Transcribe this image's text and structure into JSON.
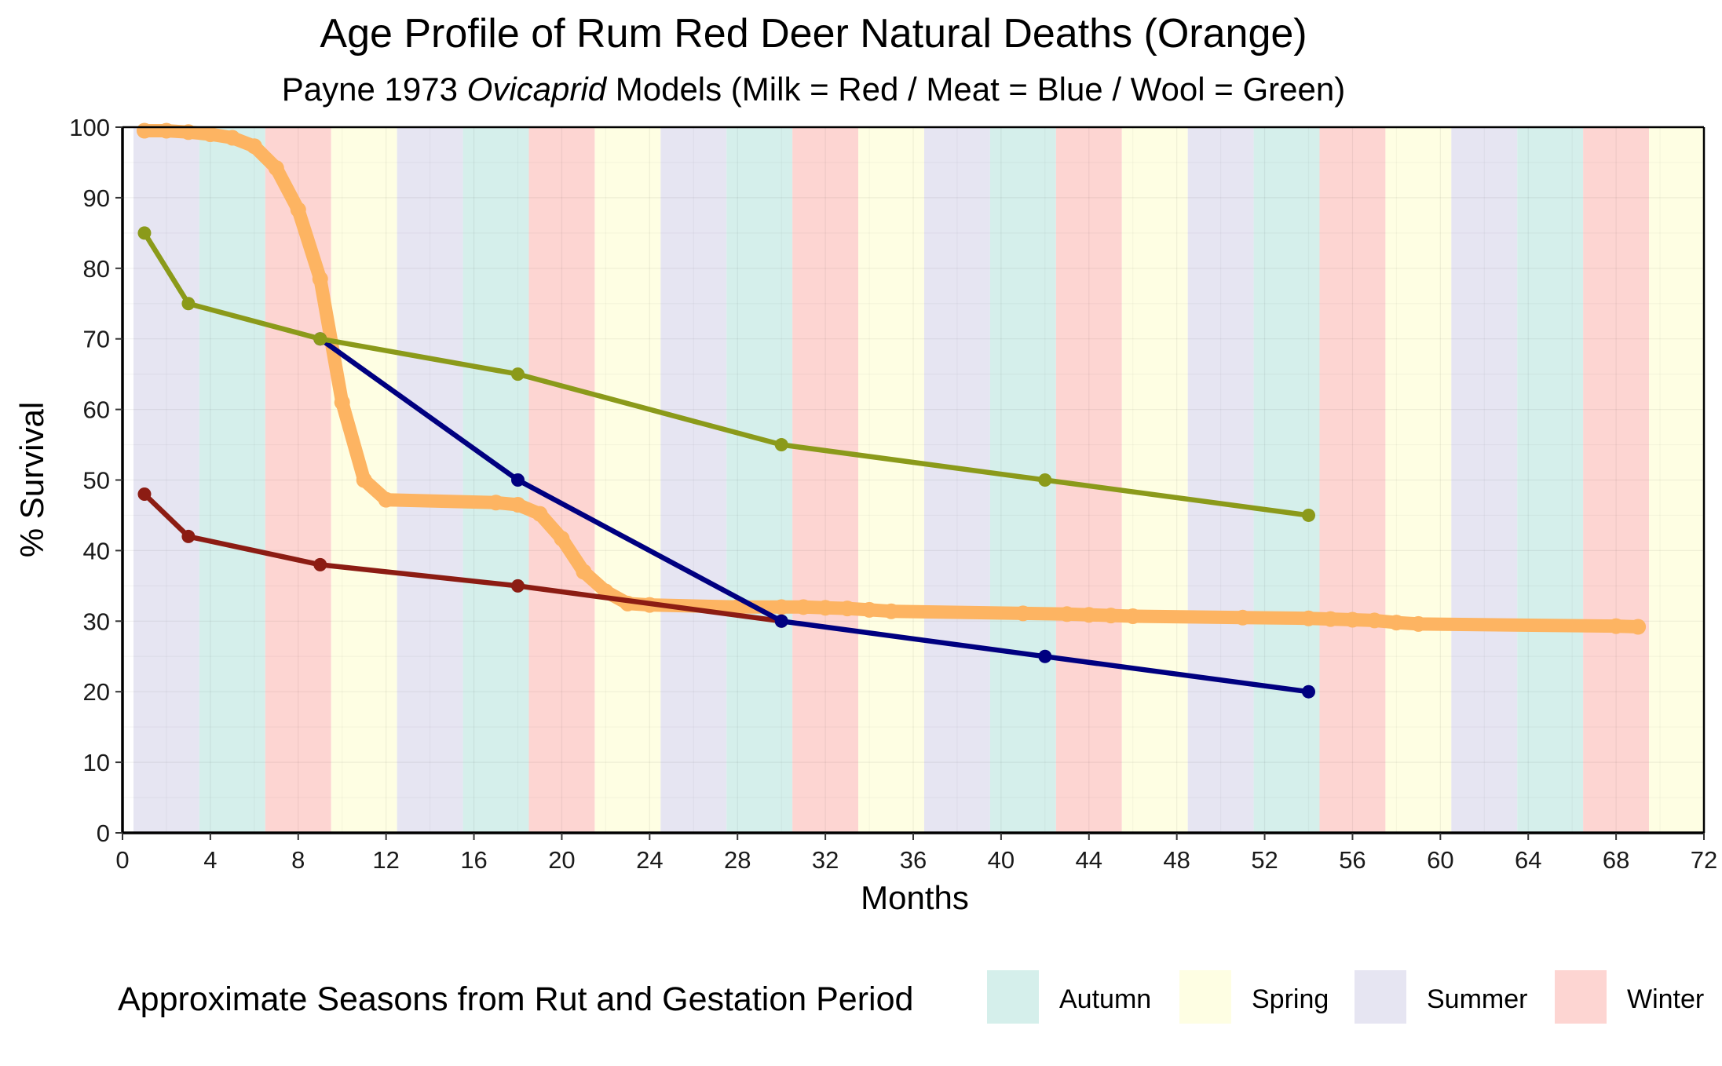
{
  "chart_data": {
    "type": "line",
    "title": "Age Profile of Rum Red Deer Natural Deaths (Orange)",
    "subtitle_parts": [
      {
        "text": "Payne 1973 ",
        "italic": false
      },
      {
        "text": "Ovicaprid",
        "italic": true
      },
      {
        "text": " Models (Milk = Red / Meat = Blue / Wool = Green)",
        "italic": false
      }
    ],
    "xlabel": "Months",
    "ylabel": "% Survival",
    "xlim": [
      0,
      72
    ],
    "ylim": [
      0,
      100
    ],
    "x_ticks": [
      0,
      4,
      8,
      12,
      16,
      20,
      24,
      28,
      32,
      36,
      40,
      44,
      48,
      52,
      56,
      60,
      64,
      68,
      72
    ],
    "y_ticks": [
      0,
      10,
      20,
      30,
      40,
      50,
      60,
      70,
      80,
      90,
      100
    ],
    "grid": true,
    "seasons": {
      "legend_title": "Approximate Seasons from Rut and Gestation Period",
      "legend_position": "bottom",
      "types": [
        {
          "key": "autumn",
          "label": "Autumn",
          "color": "#d5efeb"
        },
        {
          "key": "spring",
          "label": "Spring",
          "color": "#fefee3"
        },
        {
          "key": "summer",
          "label": "Summer",
          "color": "#e6e5f2"
        },
        {
          "key": "winter",
          "label": "Winter",
          "color": "#fdd5d2"
        }
      ],
      "bands": [
        {
          "from": 0.5,
          "to": 3.5,
          "season": "summer"
        },
        {
          "from": 3.5,
          "to": 6.5,
          "season": "autumn"
        },
        {
          "from": 6.5,
          "to": 9.5,
          "season": "winter"
        },
        {
          "from": 9.5,
          "to": 12.5,
          "season": "spring"
        },
        {
          "from": 12.5,
          "to": 15.5,
          "season": "summer"
        },
        {
          "from": 15.5,
          "to": 18.5,
          "season": "autumn"
        },
        {
          "from": 18.5,
          "to": 21.5,
          "season": "winter"
        },
        {
          "from": 21.5,
          "to": 24.5,
          "season": "spring"
        },
        {
          "from": 24.5,
          "to": 27.5,
          "season": "summer"
        },
        {
          "from": 27.5,
          "to": 30.5,
          "season": "autumn"
        },
        {
          "from": 30.5,
          "to": 33.5,
          "season": "winter"
        },
        {
          "from": 33.5,
          "to": 36.5,
          "season": "spring"
        },
        {
          "from": 36.5,
          "to": 39.5,
          "season": "summer"
        },
        {
          "from": 39.5,
          "to": 42.5,
          "season": "autumn"
        },
        {
          "from": 42.5,
          "to": 45.5,
          "season": "winter"
        },
        {
          "from": 45.5,
          "to": 48.5,
          "season": "spring"
        },
        {
          "from": 48.5,
          "to": 51.5,
          "season": "summer"
        },
        {
          "from": 51.5,
          "to": 54.5,
          "season": "autumn"
        },
        {
          "from": 54.5,
          "to": 57.5,
          "season": "winter"
        },
        {
          "from": 57.5,
          "to": 60.5,
          "season": "spring"
        },
        {
          "from": 60.5,
          "to": 63.5,
          "season": "summer"
        },
        {
          "from": 63.5,
          "to": 66.5,
          "season": "autumn"
        },
        {
          "from": 66.5,
          "to": 69.5,
          "season": "winter"
        },
        {
          "from": 69.5,
          "to": 72,
          "season": "spring"
        }
      ]
    },
    "series": [
      {
        "color": "#fdb462",
        "weight": "thick",
        "points": [
          [
            1,
            99.5
          ],
          [
            2,
            99.5
          ],
          [
            3,
            99.3
          ],
          [
            4,
            99
          ],
          [
            5,
            98.5
          ],
          [
            6,
            97.3
          ],
          [
            7,
            94.2
          ],
          [
            8,
            88.3
          ],
          [
            9,
            78.5
          ],
          [
            10,
            61
          ],
          [
            11,
            50
          ],
          [
            12,
            47.2
          ],
          [
            17,
            46.8
          ],
          [
            18,
            46.5
          ],
          [
            19,
            45.2
          ],
          [
            20,
            41.7
          ],
          [
            21,
            37
          ],
          [
            22,
            34.2
          ],
          [
            23,
            32.5
          ],
          [
            24,
            32.3
          ],
          [
            28,
            32
          ],
          [
            30,
            32
          ],
          [
            31,
            32
          ],
          [
            32,
            31.9
          ],
          [
            33,
            31.8
          ],
          [
            34,
            31.6
          ],
          [
            35,
            31.4
          ],
          [
            41,
            31.1
          ],
          [
            43,
            31
          ],
          [
            44,
            30.9
          ],
          [
            45,
            30.8
          ],
          [
            46,
            30.7
          ],
          [
            51,
            30.5
          ],
          [
            54,
            30.4
          ],
          [
            55,
            30.3
          ],
          [
            56,
            30.2
          ],
          [
            57,
            30.1
          ],
          [
            58,
            29.8
          ],
          [
            59,
            29.6
          ],
          [
            68,
            29.3
          ],
          [
            69,
            29.2
          ]
        ]
      },
      {
        "color": "#8c1c13",
        "weight": "thin",
        "points": [
          [
            1,
            48
          ],
          [
            3,
            42
          ],
          [
            9,
            38
          ],
          [
            18,
            35
          ],
          [
            30,
            30
          ]
        ]
      },
      {
        "color": "#000080",
        "weight": "thin",
        "points": [
          [
            9,
            70
          ],
          [
            18,
            50
          ],
          [
            30,
            30
          ],
          [
            42,
            25
          ],
          [
            54,
            20
          ]
        ]
      },
      {
        "color": "#8b9a1a",
        "weight": "thin",
        "points": [
          [
            1,
            85
          ],
          [
            3,
            75
          ],
          [
            9,
            70
          ],
          [
            18,
            65
          ],
          [
            30,
            55
          ],
          [
            42,
            50
          ],
          [
            54,
            45
          ]
        ]
      }
    ]
  }
}
